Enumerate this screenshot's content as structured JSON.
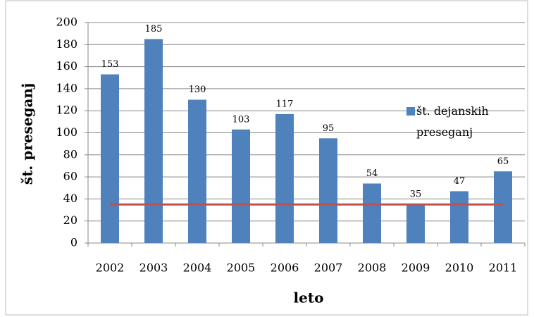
{
  "chart_data": {
    "type": "bar",
    "categories": [
      "2002",
      "2003",
      "2004",
      "2005",
      "2006",
      "2007",
      "2008",
      "2009",
      "2010",
      "2011"
    ],
    "series": [
      {
        "name": "št. dejanskih preseganj",
        "color": "#4f81bd",
        "values": [
          153,
          185,
          130,
          103,
          117,
          95,
          54,
          35,
          47,
          65
        ]
      },
      {
        "type": "line",
        "color": "#c0504d",
        "values": [
          35,
          35,
          35,
          35,
          35,
          35,
          35,
          35,
          35,
          35
        ]
      }
    ],
    "x_label": "leto",
    "y_label": "št. preseganj",
    "ylim": [
      0,
      200
    ],
    "yticks": [
      0,
      20,
      40,
      60,
      80,
      100,
      120,
      140,
      160,
      180,
      200
    ],
    "grid": true,
    "legend": "right"
  }
}
